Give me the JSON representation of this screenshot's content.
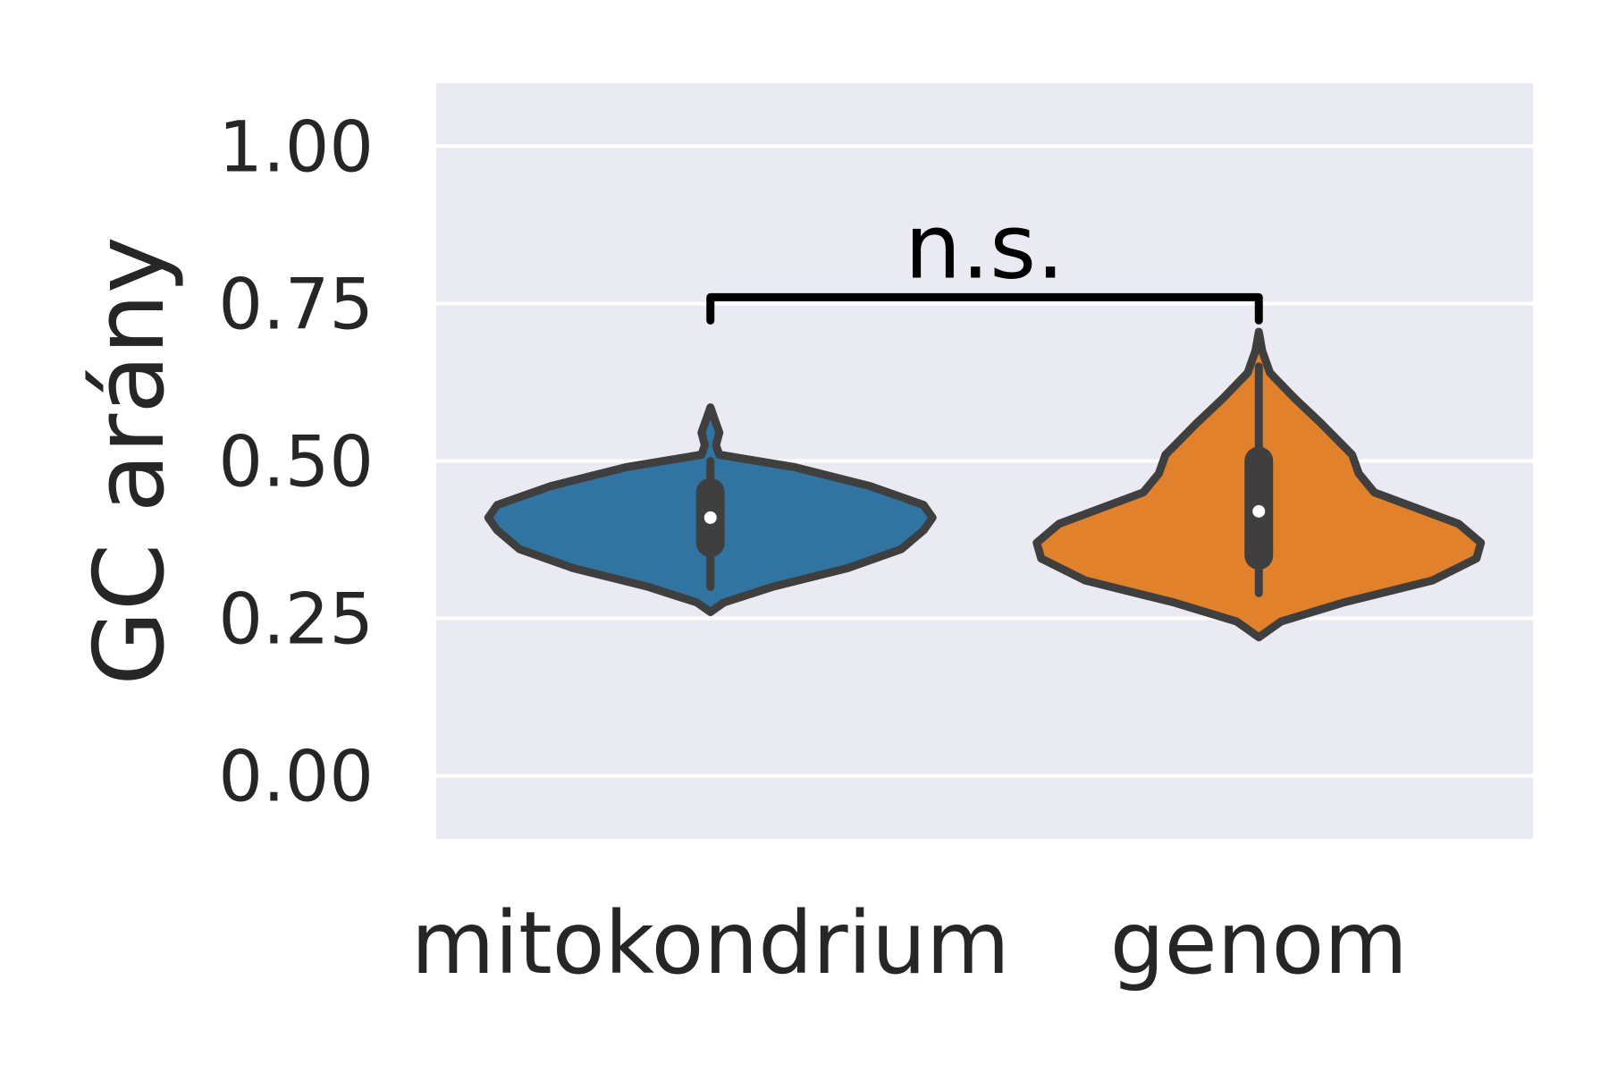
{
  "chart_data": {
    "type": "violin",
    "title": "",
    "xlabel": "",
    "ylabel": "GC arány",
    "ylim": [
      -0.1,
      1.1
    ],
    "yticks": [
      "0.00",
      "0.25",
      "0.50",
      "0.75",
      "1.00"
    ],
    "grid": true,
    "categories": [
      "mitokondrium",
      "genom"
    ],
    "series": [
      {
        "category": "mitokondrium",
        "color": "#3274a1",
        "min": 0.3,
        "q1": 0.37,
        "median": 0.41,
        "q3": 0.45,
        "max": 0.5,
        "density": [
          [
            0.26,
            0.0
          ],
          [
            0.275,
            0.06
          ],
          [
            0.3,
            0.28
          ],
          [
            0.33,
            0.62
          ],
          [
            0.36,
            0.86
          ],
          [
            0.39,
            0.96
          ],
          [
            0.41,
            1.0
          ],
          [
            0.43,
            0.96
          ],
          [
            0.46,
            0.72
          ],
          [
            0.49,
            0.38
          ],
          [
            0.51,
            0.04
          ],
          [
            0.525,
            0.025
          ],
          [
            0.545,
            0.04
          ],
          [
            0.565,
            0.02
          ],
          [
            0.585,
            0.0
          ]
        ]
      },
      {
        "category": "genom",
        "color": "#e1812c",
        "min": 0.29,
        "q1": 0.35,
        "median": 0.42,
        "q3": 0.5,
        "max": 0.65,
        "density": [
          [
            0.22,
            0.0
          ],
          [
            0.245,
            0.1
          ],
          [
            0.275,
            0.38
          ],
          [
            0.31,
            0.78
          ],
          [
            0.345,
            0.98
          ],
          [
            0.37,
            1.0
          ],
          [
            0.4,
            0.9
          ],
          [
            0.45,
            0.52
          ],
          [
            0.48,
            0.45
          ],
          [
            0.51,
            0.42
          ],
          [
            0.56,
            0.28
          ],
          [
            0.6,
            0.16
          ],
          [
            0.64,
            0.05
          ],
          [
            0.675,
            0.015
          ],
          [
            0.705,
            0.0
          ]
        ]
      }
    ],
    "annotation": {
      "text": "n.s.",
      "from": "mitokondrium",
      "to": "genom",
      "y": 0.76
    }
  }
}
